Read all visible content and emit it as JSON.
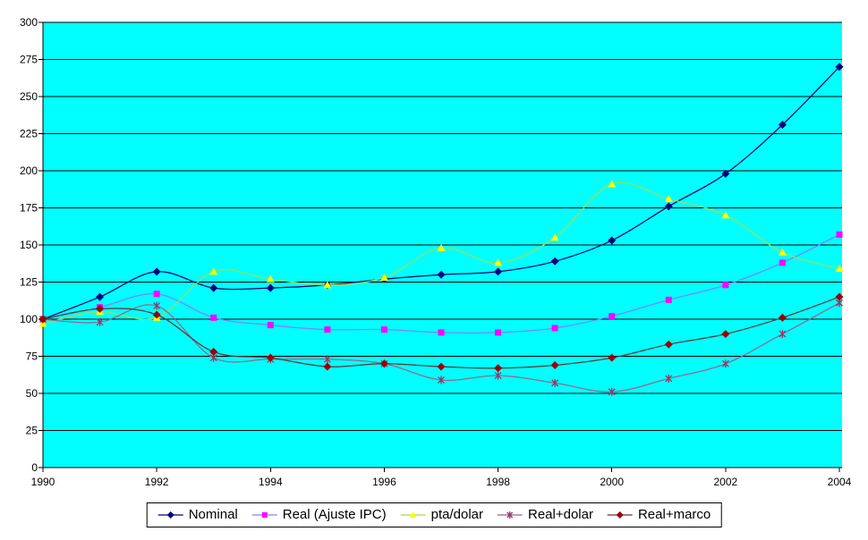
{
  "chart_data": {
    "type": "line",
    "title": "",
    "x": [
      1990,
      1991,
      1992,
      1993,
      1994,
      1995,
      1996,
      1997,
      1998,
      1999,
      2000,
      2001,
      2002,
      2003,
      2004
    ],
    "x_tick_labels": [
      "1990",
      "1992",
      "1994",
      "1996",
      "1998",
      "2000",
      "2002",
      "2004"
    ],
    "x_tick_years": [
      1990,
      1992,
      1994,
      1996,
      1998,
      2000,
      2002,
      2004
    ],
    "ylim": [
      0,
      300
    ],
    "y_ticks": [
      0,
      25,
      50,
      75,
      100,
      125,
      150,
      175,
      200,
      225,
      250,
      275,
      300
    ],
    "grid": true,
    "smoothed_lines": true,
    "legend_position": "bottom-center",
    "plot_bg_color": "#00FFFF",
    "outer_bg_color": "#FFFFFF",
    "axis_color": "#000000",
    "gridline_color": "#000000",
    "series": [
      {
        "name": "Nominal",
        "marker": "diamond",
        "line_color": "#000066",
        "marker_color": "#000080",
        "values": [
          100,
          115,
          132,
          121,
          121,
          123,
          127,
          130,
          132,
          139,
          153,
          176,
          198,
          231,
          270
        ]
      },
      {
        "name": "Real (Ajuste IPC)",
        "marker": "square",
        "line_color": "#8080FF",
        "marker_color": "#FF00FF",
        "values": [
          100,
          108,
          117,
          101,
          96,
          93,
          93,
          91,
          91,
          94,
          102,
          113,
          123,
          138,
          157
        ]
      },
      {
        "name": "pta/dolar",
        "marker": "triangle",
        "line_color": "#9BDE54",
        "marker_color": "#FFFF00",
        "values": [
          97,
          105,
          101,
          132,
          127,
          123,
          128,
          148,
          138,
          155,
          191,
          181,
          170,
          145,
          134
        ]
      },
      {
        "name": "Real+dolar",
        "marker": "star",
        "line_color": "#996688",
        "marker_color": "#993366",
        "values": [
          100,
          98,
          109,
          74,
          73,
          73,
          70,
          59,
          62,
          57,
          51,
          60,
          70,
          90,
          111
        ]
      },
      {
        "name": "Real+marco",
        "marker": "diamond",
        "line_color": "#663333",
        "marker_color": "#990000",
        "values": [
          100,
          107,
          103,
          78,
          74,
          68,
          70,
          68,
          67,
          69,
          74,
          83,
          90,
          101,
          115
        ]
      }
    ]
  }
}
